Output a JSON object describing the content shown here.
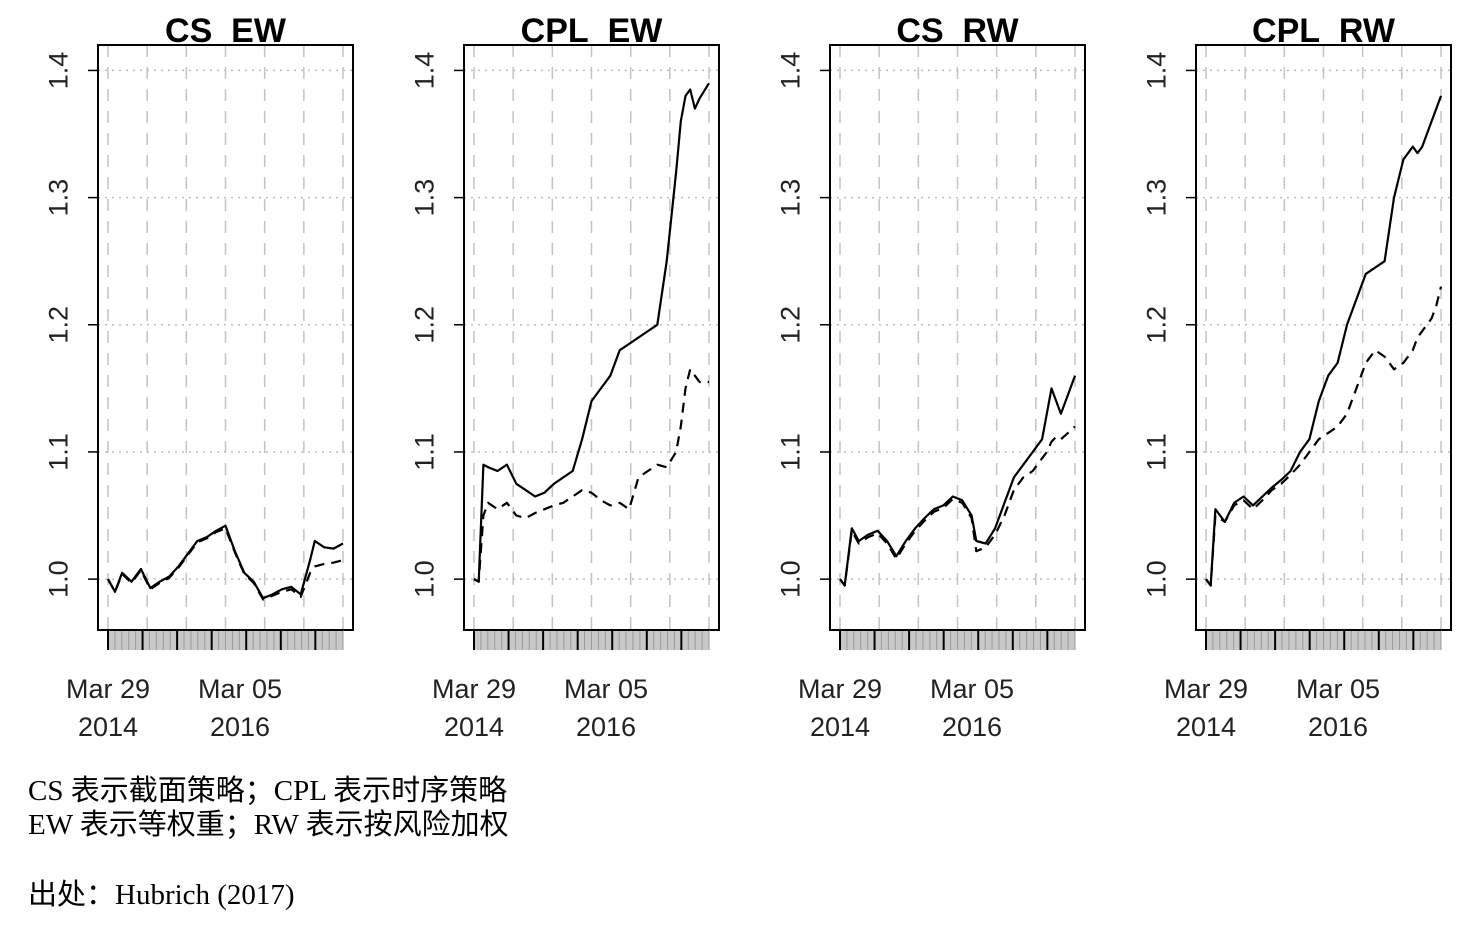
{
  "chart_data": [
    {
      "type": "line",
      "title": "CS_EW",
      "ylim": [
        0.96,
        1.42
      ],
      "yticks": [
        "1.0",
        "1.1",
        "1.2",
        "1.3",
        "1.4"
      ],
      "xticks": [
        {
          "line1": "Mar 29",
          "line2": "2014"
        },
        {
          "line1": "Mar 05",
          "line2": "2016"
        }
      ],
      "grid": true,
      "series": [
        {
          "style": "solid",
          "t": [
            0.0,
            0.03,
            0.06,
            0.1,
            0.14,
            0.18,
            0.22,
            0.26,
            0.3,
            0.34,
            0.38,
            0.42,
            0.46,
            0.5,
            0.54,
            0.58,
            0.62,
            0.66,
            0.7,
            0.74,
            0.78,
            0.82,
            0.86,
            0.88,
            0.92,
            0.96,
            1.0
          ],
          "values": [
            1.0,
            0.99,
            1.005,
            0.998,
            1.008,
            0.993,
            0.998,
            1.002,
            1.01,
            1.02,
            1.03,
            1.033,
            1.038,
            1.042,
            1.022,
            1.005,
            0.998,
            0.985,
            0.988,
            0.992,
            0.994,
            0.988,
            1.015,
            1.03,
            1.025,
            1.024,
            1.028
          ]
        },
        {
          "style": "dashed",
          "t": [
            0.0,
            0.03,
            0.06,
            0.1,
            0.14,
            0.18,
            0.22,
            0.26,
            0.3,
            0.34,
            0.38,
            0.42,
            0.46,
            0.5,
            0.54,
            0.58,
            0.62,
            0.66,
            0.7,
            0.74,
            0.78,
            0.82,
            0.86,
            0.88,
            0.92,
            0.96,
            1.0
          ],
          "values": [
            1.0,
            0.99,
            1.004,
            0.997,
            1.007,
            0.992,
            0.997,
            1.001,
            1.009,
            1.019,
            1.029,
            1.032,
            1.037,
            1.04,
            1.021,
            1.004,
            0.997,
            0.984,
            0.987,
            0.99,
            0.992,
            0.986,
            1.005,
            1.01,
            1.012,
            1.013,
            1.015
          ]
        }
      ]
    },
    {
      "type": "line",
      "title": "CPL_EW",
      "ylim": [
        0.96,
        1.42
      ],
      "yticks": [
        "1.0",
        "1.1",
        "1.2",
        "1.3",
        "1.4"
      ],
      "xticks": [
        {
          "line1": "Mar 29",
          "line2": "2014"
        },
        {
          "line1": "Mar 05",
          "line2": "2016"
        }
      ],
      "grid": true,
      "series": [
        {
          "style": "solid",
          "t": [
            0.0,
            0.02,
            0.04,
            0.06,
            0.1,
            0.14,
            0.18,
            0.22,
            0.26,
            0.3,
            0.34,
            0.38,
            0.42,
            0.46,
            0.5,
            0.54,
            0.58,
            0.62,
            0.66,
            0.7,
            0.74,
            0.78,
            0.82,
            0.86,
            0.88,
            0.9,
            0.92,
            0.94,
            0.96,
            1.0
          ],
          "values": [
            1.0,
            0.998,
            1.09,
            1.088,
            1.085,
            1.09,
            1.075,
            1.07,
            1.065,
            1.068,
            1.075,
            1.08,
            1.085,
            1.11,
            1.14,
            1.15,
            1.16,
            1.18,
            1.185,
            1.19,
            1.195,
            1.2,
            1.25,
            1.32,
            1.36,
            1.38,
            1.385,
            1.37,
            1.378,
            1.39
          ]
        },
        {
          "style": "dashed",
          "t": [
            0.0,
            0.02,
            0.04,
            0.06,
            0.1,
            0.14,
            0.18,
            0.22,
            0.26,
            0.3,
            0.34,
            0.38,
            0.42,
            0.46,
            0.5,
            0.54,
            0.58,
            0.62,
            0.66,
            0.7,
            0.74,
            0.78,
            0.82,
            0.86,
            0.88,
            0.9,
            0.92,
            0.94,
            0.96,
            1.0
          ],
          "values": [
            1.0,
            0.998,
            1.05,
            1.06,
            1.055,
            1.06,
            1.05,
            1.048,
            1.052,
            1.055,
            1.058,
            1.06,
            1.065,
            1.07,
            1.068,
            1.062,
            1.058,
            1.06,
            1.055,
            1.08,
            1.085,
            1.09,
            1.088,
            1.1,
            1.12,
            1.15,
            1.165,
            1.16,
            1.155,
            1.155
          ]
        }
      ]
    },
    {
      "type": "line",
      "title": "CS_RW",
      "ylim": [
        0.96,
        1.42
      ],
      "yticks": [
        "1.0",
        "1.1",
        "1.2",
        "1.3",
        "1.4"
      ],
      "xticks": [
        {
          "line1": "Mar 29",
          "line2": "2014"
        },
        {
          "line1": "Mar 05",
          "line2": "2016"
        }
      ],
      "grid": true,
      "series": [
        {
          "style": "solid",
          "t": [
            0.0,
            0.02,
            0.05,
            0.08,
            0.12,
            0.16,
            0.2,
            0.24,
            0.28,
            0.32,
            0.36,
            0.4,
            0.44,
            0.48,
            0.52,
            0.56,
            0.58,
            0.62,
            0.66,
            0.7,
            0.74,
            0.78,
            0.82,
            0.86,
            0.88,
            0.9,
            0.92,
            0.94,
            0.97,
            1.0
          ],
          "values": [
            1.0,
            0.995,
            1.04,
            1.03,
            1.035,
            1.038,
            1.03,
            1.018,
            1.03,
            1.04,
            1.048,
            1.055,
            1.058,
            1.065,
            1.062,
            1.05,
            1.03,
            1.028,
            1.04,
            1.06,
            1.08,
            1.09,
            1.1,
            1.11,
            1.13,
            1.15,
            1.14,
            1.13,
            1.145,
            1.16
          ]
        },
        {
          "style": "dashed",
          "t": [
            0.0,
            0.02,
            0.05,
            0.08,
            0.12,
            0.16,
            0.2,
            0.24,
            0.28,
            0.32,
            0.36,
            0.4,
            0.44,
            0.48,
            0.52,
            0.56,
            0.58,
            0.62,
            0.66,
            0.7,
            0.74,
            0.78,
            0.82,
            0.86,
            0.88,
            0.9,
            0.92,
            0.94,
            0.97,
            1.0
          ],
          "values": [
            1.0,
            0.995,
            1.038,
            1.028,
            1.033,
            1.036,
            1.028,
            1.016,
            1.028,
            1.038,
            1.046,
            1.053,
            1.056,
            1.063,
            1.06,
            1.048,
            1.022,
            1.025,
            1.035,
            1.05,
            1.07,
            1.08,
            1.085,
            1.095,
            1.1,
            1.108,
            1.112,
            1.11,
            1.115,
            1.12
          ]
        }
      ]
    },
    {
      "type": "line",
      "title": "CPL_RW",
      "ylim": [
        0.96,
        1.42
      ],
      "yticks": [
        "1.0",
        "1.1",
        "1.2",
        "1.3",
        "1.4"
      ],
      "xticks": [
        {
          "line1": "Mar 29",
          "line2": "2014"
        },
        {
          "line1": "Mar 05",
          "line2": "2016"
        }
      ],
      "grid": true,
      "series": [
        {
          "style": "solid",
          "t": [
            0.0,
            0.02,
            0.04,
            0.08,
            0.12,
            0.16,
            0.2,
            0.24,
            0.28,
            0.32,
            0.36,
            0.4,
            0.44,
            0.48,
            0.52,
            0.56,
            0.6,
            0.64,
            0.68,
            0.72,
            0.76,
            0.8,
            0.84,
            0.88,
            0.9,
            0.92,
            0.94,
            0.96,
            0.98,
            1.0
          ],
          "values": [
            1.0,
            0.995,
            1.055,
            1.045,
            1.06,
            1.065,
            1.058,
            1.065,
            1.072,
            1.078,
            1.085,
            1.1,
            1.11,
            1.14,
            1.16,
            1.17,
            1.2,
            1.22,
            1.24,
            1.245,
            1.25,
            1.3,
            1.33,
            1.34,
            1.335,
            1.34,
            1.35,
            1.36,
            1.37,
            1.38
          ]
        },
        {
          "style": "dashed",
          "t": [
            0.0,
            0.02,
            0.04,
            0.08,
            0.12,
            0.16,
            0.2,
            0.24,
            0.28,
            0.32,
            0.36,
            0.4,
            0.44,
            0.48,
            0.52,
            0.56,
            0.6,
            0.64,
            0.68,
            0.72,
            0.76,
            0.8,
            0.84,
            0.88,
            0.9,
            0.92,
            0.94,
            0.96,
            0.98,
            1.0
          ],
          "values": [
            1.0,
            0.995,
            1.05,
            1.045,
            1.058,
            1.062,
            1.055,
            1.062,
            1.07,
            1.075,
            1.082,
            1.09,
            1.1,
            1.11,
            1.115,
            1.12,
            1.13,
            1.15,
            1.17,
            1.18,
            1.175,
            1.165,
            1.17,
            1.18,
            1.19,
            1.195,
            1.2,
            1.205,
            1.215,
            1.23
          ]
        }
      ]
    }
  ],
  "caption": {
    "line1": "CS 表示截面策略；CPL 表示时序策略",
    "line2": "EW 表示等权重；RW 表示按风险加权",
    "source": "出处：Hubrich (2017)"
  }
}
